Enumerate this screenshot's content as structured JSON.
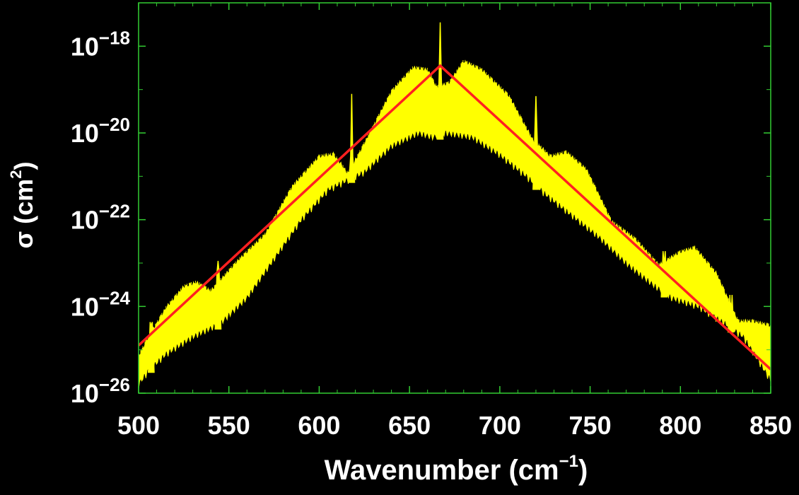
{
  "chart_data": {
    "type": "line",
    "xlabel": {
      "main": "Wavenumber (cm",
      "sup": "−1",
      "close": ")"
    },
    "ylabel": {
      "main": "σ (cm",
      "sup": "2",
      "close": ")"
    },
    "xlim": [
      500,
      850
    ],
    "ylim_log10": [
      -26,
      -17
    ],
    "y_scale": "log",
    "grid": false,
    "frame_color": "#32cd32",
    "x_ticks": [
      {
        "value": 500,
        "label": "500"
      },
      {
        "value": 550,
        "label": "550"
      },
      {
        "value": 600,
        "label": "600"
      },
      {
        "value": 650,
        "label": "650"
      },
      {
        "value": 700,
        "label": "700"
      },
      {
        "value": 750,
        "label": "750"
      },
      {
        "value": 800,
        "label": "800"
      },
      {
        "value": 850,
        "label": "850"
      }
    ],
    "y_ticks": [
      {
        "log10": -18,
        "base": "10",
        "exp": "−18"
      },
      {
        "log10": -20,
        "base": "10",
        "exp": "−20"
      },
      {
        "log10": -22,
        "base": "10",
        "exp": "−22"
      },
      {
        "log10": -24,
        "base": "10",
        "exp": "−24"
      },
      {
        "log10": -26,
        "base": "10",
        "exp": "−26"
      }
    ],
    "series": [
      {
        "color": "#ffff00",
        "style": "band",
        "upper_log10": [
          {
            "x": 500,
            "y": -25.1
          },
          {
            "x": 505,
            "y": -24.7
          },
          {
            "x": 515,
            "y": -24.0
          },
          {
            "x": 525,
            "y": -23.5
          },
          {
            "x": 532,
            "y": -23.4
          },
          {
            "x": 540,
            "y": -23.6
          },
          {
            "x": 555,
            "y": -22.9
          },
          {
            "x": 570,
            "y": -22.3
          },
          {
            "x": 585,
            "y": -21.2
          },
          {
            "x": 600,
            "y": -20.5
          },
          {
            "x": 608,
            "y": -20.45
          },
          {
            "x": 616,
            "y": -20.9
          },
          {
            "x": 625,
            "y": -20.2
          },
          {
            "x": 640,
            "y": -19.0
          },
          {
            "x": 652,
            "y": -18.45
          },
          {
            "x": 660,
            "y": -18.5
          },
          {
            "x": 665,
            "y": -18.9
          },
          {
            "x": 672,
            "y": -18.8
          },
          {
            "x": 680,
            "y": -18.3
          },
          {
            "x": 690,
            "y": -18.5
          },
          {
            "x": 705,
            "y": -19.1
          },
          {
            "x": 718,
            "y": -20.1
          },
          {
            "x": 728,
            "y": -20.5
          },
          {
            "x": 737,
            "y": -20.4
          },
          {
            "x": 748,
            "y": -20.8
          },
          {
            "x": 762,
            "y": -22.0
          },
          {
            "x": 775,
            "y": -22.4
          },
          {
            "x": 788,
            "y": -23.0
          },
          {
            "x": 800,
            "y": -22.7
          },
          {
            "x": 808,
            "y": -22.6
          },
          {
            "x": 820,
            "y": -23.2
          },
          {
            "x": 832,
            "y": -24.3
          },
          {
            "x": 840,
            "y": -24.3
          },
          {
            "x": 850,
            "y": -24.4
          }
        ],
        "lower_log10": [
          {
            "x": 500,
            "y": -25.9
          },
          {
            "x": 505,
            "y": -25.6
          },
          {
            "x": 515,
            "y": -25.2
          },
          {
            "x": 530,
            "y": -24.8
          },
          {
            "x": 545,
            "y": -24.5
          },
          {
            "x": 560,
            "y": -23.9
          },
          {
            "x": 575,
            "y": -23.0
          },
          {
            "x": 590,
            "y": -22.1
          },
          {
            "x": 605,
            "y": -21.4
          },
          {
            "x": 615,
            "y": -21.2
          },
          {
            "x": 625,
            "y": -21.0
          },
          {
            "x": 640,
            "y": -20.4
          },
          {
            "x": 655,
            "y": -20.1
          },
          {
            "x": 663,
            "y": -20.2
          },
          {
            "x": 670,
            "y": -20.1
          },
          {
            "x": 685,
            "y": -20.2
          },
          {
            "x": 700,
            "y": -20.6
          },
          {
            "x": 715,
            "y": -21.1
          },
          {
            "x": 725,
            "y": -21.5
          },
          {
            "x": 740,
            "y": -22.0
          },
          {
            "x": 755,
            "y": -22.5
          },
          {
            "x": 770,
            "y": -23.1
          },
          {
            "x": 785,
            "y": -23.6
          },
          {
            "x": 795,
            "y": -23.9
          },
          {
            "x": 810,
            "y": -24.1
          },
          {
            "x": 825,
            "y": -24.5
          },
          {
            "x": 835,
            "y": -24.8
          },
          {
            "x": 850,
            "y": -25.8
          }
        ],
        "peaks_log10": [
          {
            "x": 507,
            "y": -24.45
          },
          {
            "x": 544,
            "y": -22.95
          },
          {
            "x": 618,
            "y": -19.1
          },
          {
            "x": 667,
            "y": -17.45
          },
          {
            "x": 720,
            "y": -19.15
          },
          {
            "x": 791,
            "y": -23.05
          },
          {
            "x": 828,
            "y": -24.4
          }
        ]
      },
      {
        "color": "#ff2020",
        "style": "line",
        "points_log10": [
          {
            "x": 500,
            "y": -24.9
          },
          {
            "x": 667,
            "y": -18.45
          },
          {
            "x": 850,
            "y": -25.45
          }
        ]
      }
    ]
  }
}
